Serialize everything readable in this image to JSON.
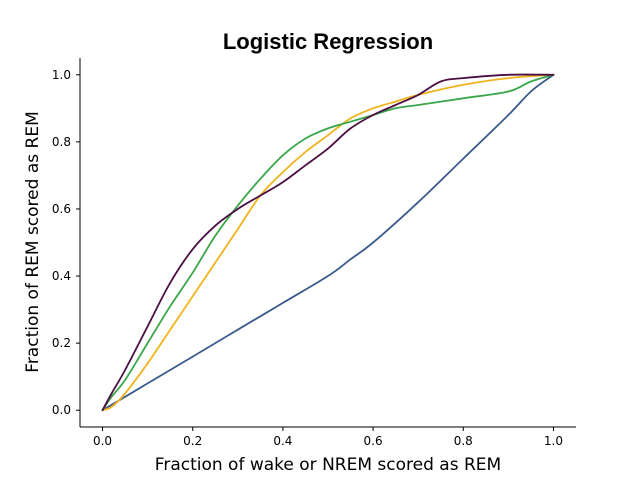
{
  "chart_data": {
    "type": "line",
    "title": "Logistic Regression",
    "xlabel": "Fraction of wake or NREM scored as REM",
    "ylabel": "Fraction of REM scored as REM",
    "xlim": [
      -0.05,
      1.05
    ],
    "ylim": [
      -0.05,
      1.05
    ],
    "xticks": [
      "0.0",
      "0.2",
      "0.4",
      "0.6",
      "0.8",
      "1.0"
    ],
    "yticks": [
      "0.0",
      "0.2",
      "0.4",
      "0.6",
      "0.8",
      "1.0"
    ],
    "grid": false,
    "legend": "none",
    "series": [
      {
        "color": "#3b5b8c",
        "x": [
          0.0,
          0.05,
          0.1,
          0.2,
          0.3,
          0.4,
          0.5,
          0.55,
          0.6,
          0.7,
          0.8,
          0.9,
          0.95,
          1.0
        ],
        "y": [
          0.0,
          0.04,
          0.08,
          0.16,
          0.24,
          0.32,
          0.4,
          0.45,
          0.5,
          0.62,
          0.75,
          0.88,
          0.95,
          1.0
        ]
      },
      {
        "color": "#f2b21c",
        "x": [
          0.0,
          0.02,
          0.05,
          0.1,
          0.15,
          0.2,
          0.25,
          0.3,
          0.35,
          0.4,
          0.45,
          0.5,
          0.55,
          0.6,
          0.65,
          0.7,
          0.8,
          0.9,
          1.0
        ],
        "y": [
          0.0,
          0.01,
          0.05,
          0.14,
          0.24,
          0.34,
          0.44,
          0.54,
          0.64,
          0.71,
          0.77,
          0.82,
          0.87,
          0.9,
          0.92,
          0.94,
          0.97,
          0.99,
          1.0
        ]
      },
      {
        "color": "#3aa64a",
        "x": [
          0.0,
          0.02,
          0.05,
          0.1,
          0.15,
          0.2,
          0.25,
          0.3,
          0.35,
          0.4,
          0.45,
          0.5,
          0.55,
          0.6,
          0.65,
          0.7,
          0.8,
          0.9,
          0.95,
          1.0
        ],
        "y": [
          0.0,
          0.04,
          0.09,
          0.2,
          0.31,
          0.41,
          0.52,
          0.61,
          0.69,
          0.76,
          0.81,
          0.84,
          0.86,
          0.88,
          0.9,
          0.91,
          0.93,
          0.95,
          0.98,
          1.0
        ]
      },
      {
        "color": "#4b0f44",
        "x": [
          0.0,
          0.02,
          0.05,
          0.1,
          0.15,
          0.2,
          0.25,
          0.3,
          0.35,
          0.4,
          0.45,
          0.5,
          0.55,
          0.6,
          0.65,
          0.7,
          0.75,
          0.8,
          0.9,
          1.0
        ],
        "y": [
          0.0,
          0.05,
          0.12,
          0.25,
          0.38,
          0.48,
          0.55,
          0.6,
          0.64,
          0.68,
          0.73,
          0.78,
          0.84,
          0.88,
          0.91,
          0.94,
          0.98,
          0.99,
          1.0,
          1.0
        ]
      }
    ]
  }
}
